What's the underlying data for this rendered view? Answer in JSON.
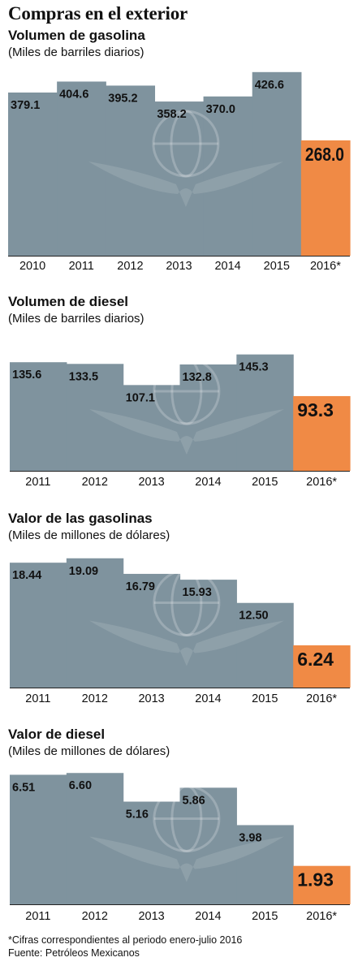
{
  "page_title": "Compras en el exterior",
  "colors": {
    "bar": "#7f939e",
    "highlight": "#f08a45",
    "axis": "#222222",
    "text": "#111111"
  },
  "chart_data": [
    {
      "type": "bar",
      "title": "Volumen de gasolina",
      "subtitle": "(Miles de barriles diarios)",
      "categories": [
        "2010",
        "2011",
        "2012",
        "2013",
        "2014",
        "2015",
        "2016*"
      ],
      "values": [
        379.1,
        404.6,
        395.2,
        358.2,
        370.0,
        426.6,
        268.0
      ],
      "value_labels": [
        "379.1",
        "404.6",
        "395.2",
        "358.2",
        "370.0",
        "426.6",
        "268.0"
      ],
      "highlight_index": 6,
      "ylim": [
        0,
        430
      ]
    },
    {
      "type": "bar",
      "title": "Volumen de diesel",
      "subtitle": "(Miles de barriles diarios)",
      "categories": [
        "2011",
        "2012",
        "2013",
        "2014",
        "2015",
        "2016*"
      ],
      "values": [
        135.6,
        133.5,
        107.1,
        132.8,
        145.3,
        93.3
      ],
      "value_labels": [
        "135.6",
        "133.5",
        "107.1",
        "132.8",
        "145.3",
        "93.3"
      ],
      "highlight_index": 5,
      "ylim": [
        0,
        150
      ]
    },
    {
      "type": "bar",
      "title": "Valor de las gasolinas",
      "subtitle": "(Miles de millones de dólares)",
      "categories": [
        "2011",
        "2012",
        "2013",
        "2014",
        "2015",
        "2016*"
      ],
      "values": [
        18.44,
        19.09,
        16.79,
        15.93,
        12.5,
        6.24
      ],
      "value_labels": [
        "18.44",
        "19.09",
        "16.79",
        "15.93",
        "12.50",
        "6.24"
      ],
      "highlight_index": 5,
      "ylim": [
        0,
        19.3
      ]
    },
    {
      "type": "bar",
      "title": "Valor de diesel",
      "subtitle": "(Miles de millones de dólares)",
      "categories": [
        "2011",
        "2012",
        "2013",
        "2014",
        "2015",
        "2016*"
      ],
      "values": [
        6.51,
        6.6,
        5.16,
        5.86,
        3.98,
        1.93
      ],
      "value_labels": [
        "6.51",
        "6.60",
        "5.16",
        "5.86",
        "3.98",
        "1.93"
      ],
      "highlight_index": 5,
      "ylim": [
        0,
        6.65
      ]
    }
  ],
  "footnotes": {
    "note": "*Cifras correspondientes al periodo enero-julio 2016",
    "source": "Fuente: Petróleos Mexicanos"
  }
}
